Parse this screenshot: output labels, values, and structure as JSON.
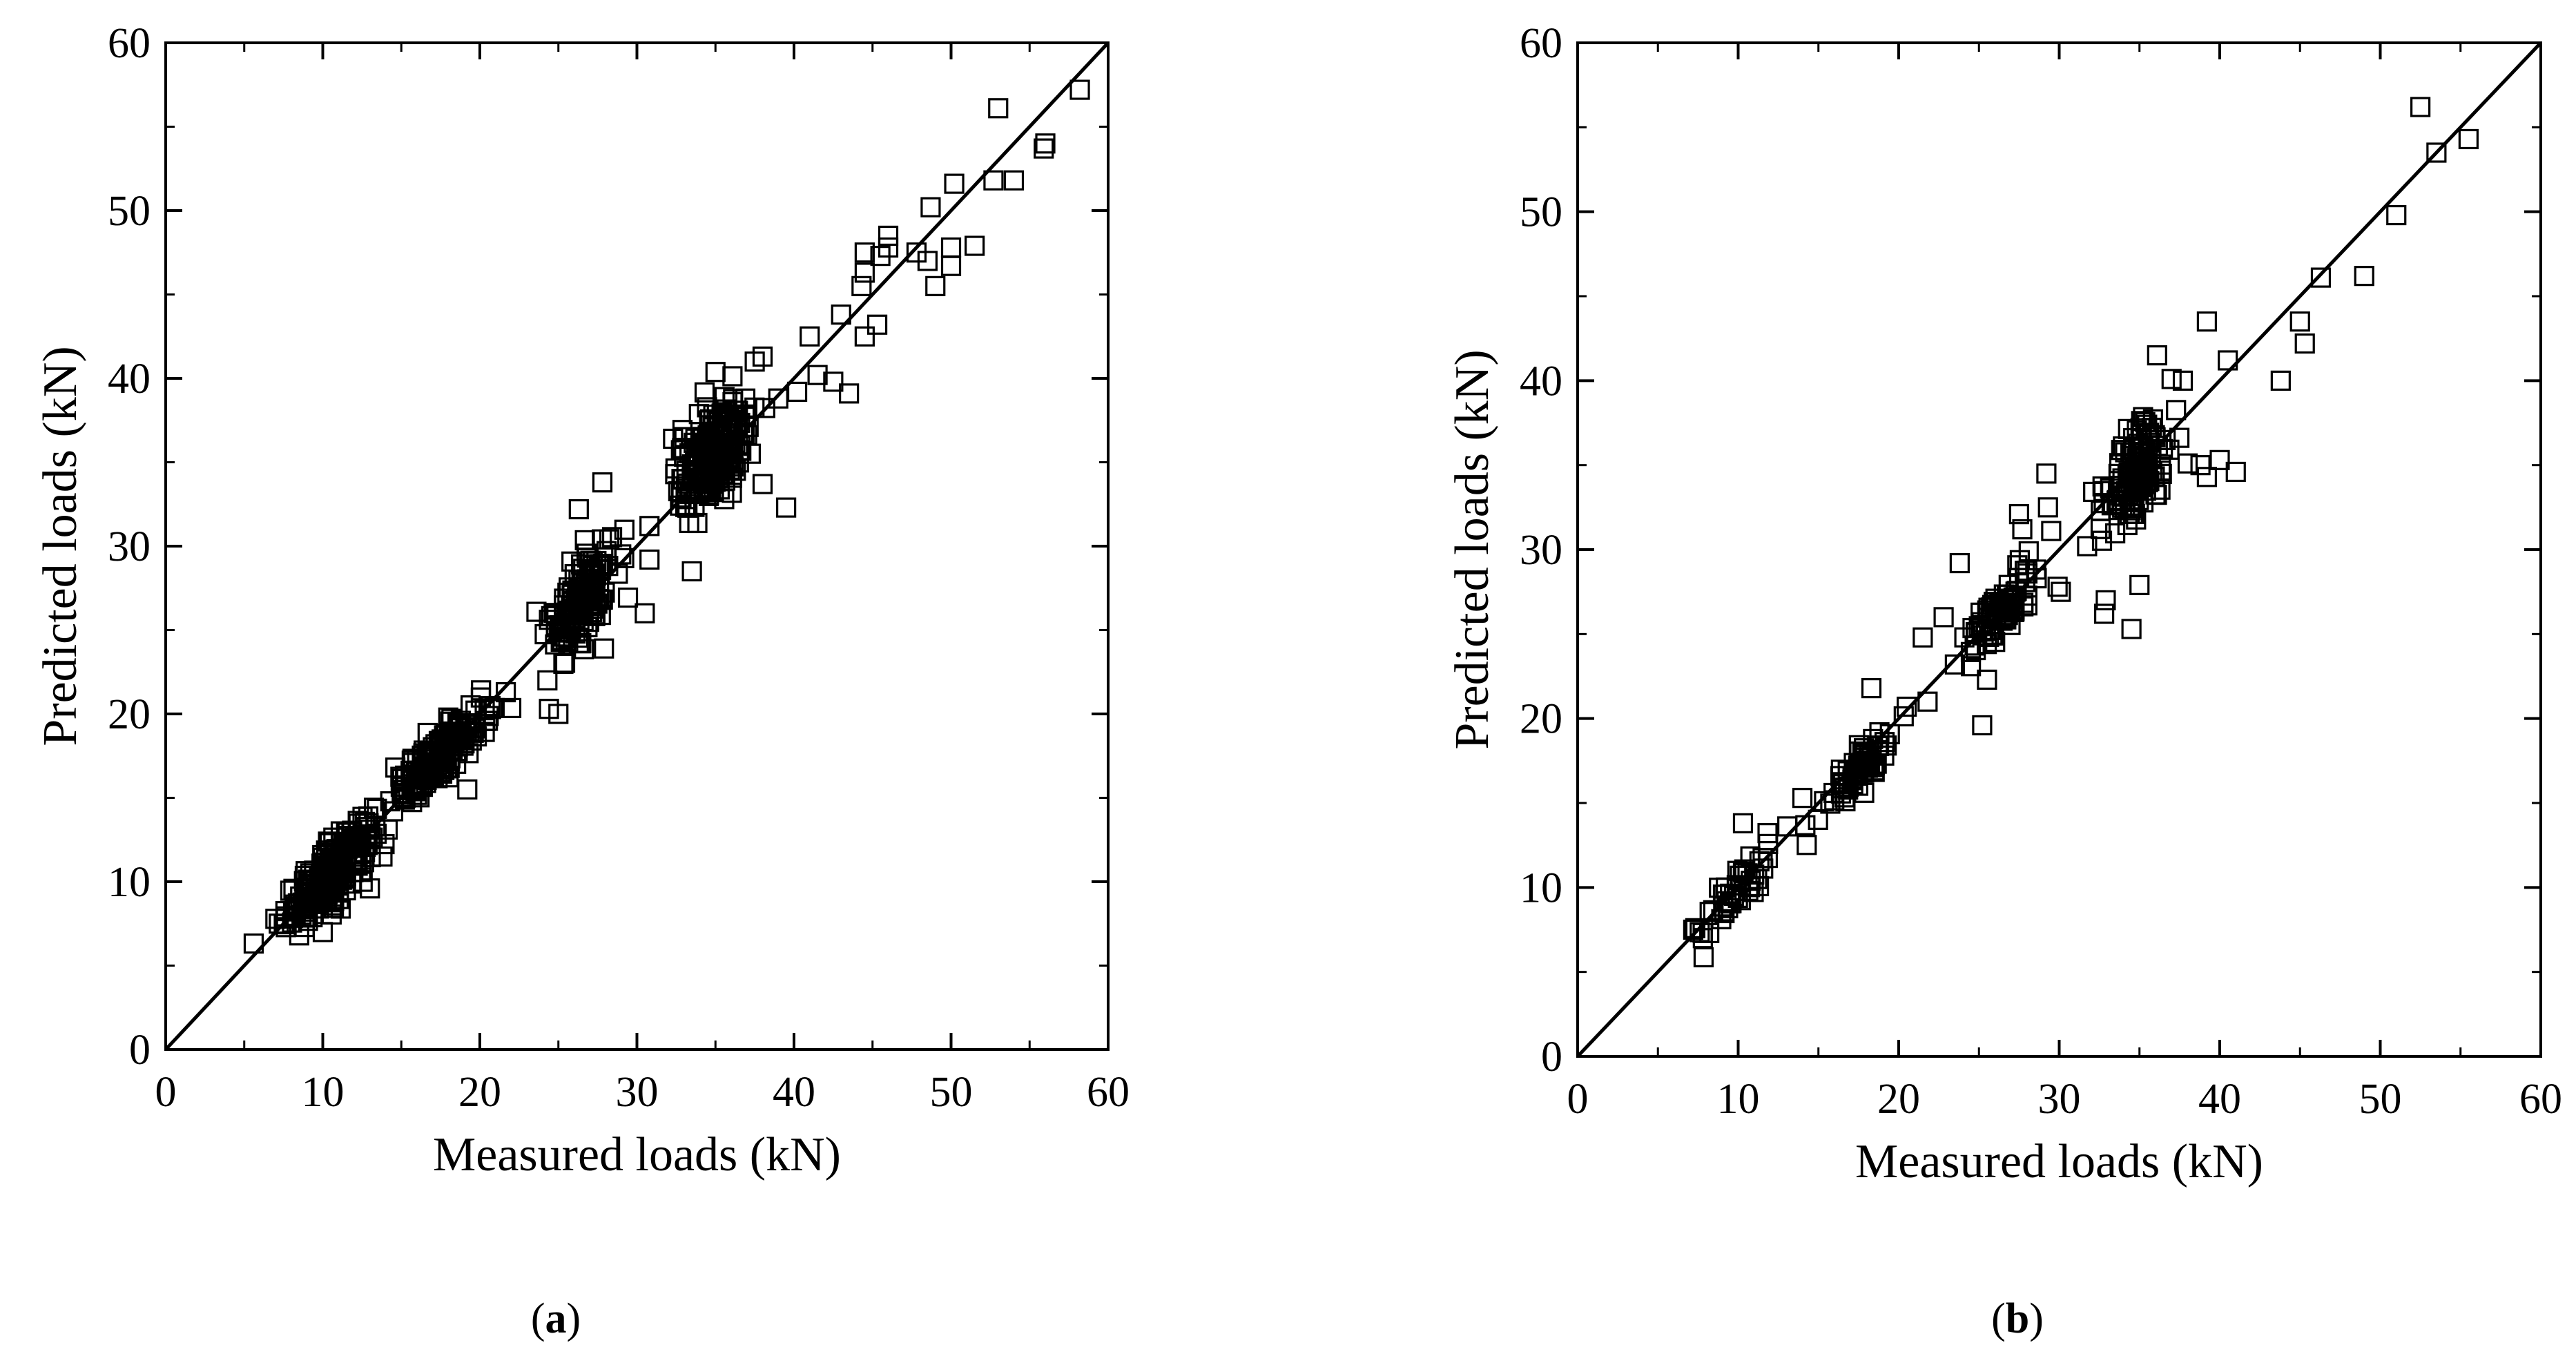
{
  "chart_data": [
    {
      "panel": "a",
      "caption_letter": "a",
      "type": "scatter",
      "xlabel": "Measured loads (kN)",
      "ylabel": "Predicted loads (kN)",
      "xlim": [
        0,
        60
      ],
      "ylim": [
        0,
        60
      ],
      "xticks": [
        0,
        10,
        20,
        30,
        40,
        50,
        60
      ],
      "yticks": [
        0,
        10,
        20,
        30,
        40,
        50,
        60
      ],
      "reference_line": {
        "from": [
          0,
          0
        ],
        "to": [
          60,
          60
        ]
      },
      "marker": "open-square",
      "grid": false,
      "clusters": [
        {
          "cx": 10.5,
          "cy": 10.5,
          "sx": 1.4,
          "sy": 1.6,
          "n": 240
        },
        {
          "cx": 17.5,
          "cy": 17.5,
          "sx": 1.5,
          "sy": 1.3,
          "n": 180
        },
        {
          "cx": 26.5,
          "cy": 27.0,
          "sx": 1.0,
          "sy": 2.4,
          "n": 150
        },
        {
          "cx": 35.0,
          "cy": 35.5,
          "sx": 1.2,
          "sy": 2.8,
          "n": 200
        }
      ],
      "values": [
        [
          7.2,
          7.5
        ],
        [
          8.5,
          6.8
        ],
        [
          10.0,
          7.0
        ],
        [
          13.0,
          9.6
        ],
        [
          13.8,
          11.5
        ],
        [
          19.2,
          15.5
        ],
        [
          24.4,
          20.3
        ],
        [
          25.0,
          20.0
        ],
        [
          24.3,
          22.0
        ],
        [
          27.9,
          23.9
        ],
        [
          27.8,
          33.8
        ],
        [
          26.3,
          32.2
        ],
        [
          30.5,
          26.0
        ],
        [
          30.8,
          29.2
        ],
        [
          30.8,
          31.2
        ],
        [
          32.3,
          36.4
        ],
        [
          32.8,
          33.2
        ],
        [
          33.5,
          28.5
        ],
        [
          37.5,
          41.0
        ],
        [
          38.0,
          41.3
        ],
        [
          38.0,
          33.7
        ],
        [
          39.5,
          32.3
        ],
        [
          39.0,
          38.8
        ],
        [
          40.2,
          39.2
        ],
        [
          41.0,
          42.5
        ],
        [
          41.5,
          40.2
        ],
        [
          42.5,
          39.8
        ],
        [
          43.0,
          43.8
        ],
        [
          43.5,
          39.1
        ],
        [
          44.3,
          45.5
        ],
        [
          44.5,
          46.3
        ],
        [
          44.5,
          47.5
        ],
        [
          44.5,
          42.5
        ],
        [
          45.3,
          43.2
        ],
        [
          45.5,
          47.3
        ],
        [
          46.0,
          47.8
        ],
        [
          46.0,
          48.5
        ],
        [
          47.8,
          47.5
        ],
        [
          48.5,
          47.0
        ],
        [
          48.7,
          50.2
        ],
        [
          49.0,
          45.5
        ],
        [
          50.0,
          46.7
        ],
        [
          50.0,
          47.8
        ],
        [
          50.2,
          51.6
        ],
        [
          51.5,
          47.9
        ],
        [
          52.7,
          51.8
        ],
        [
          53.0,
          56.1
        ],
        [
          54.0,
          51.8
        ],
        [
          55.9,
          53.7
        ],
        [
          56.0,
          54.0
        ],
        [
          58.2,
          57.2
        ]
      ]
    },
    {
      "panel": "b",
      "caption_letter": "b",
      "type": "scatter",
      "xlabel": "Measured loads (kN)",
      "ylabel": "Predicted loads (kN)",
      "xlim": [
        0,
        60
      ],
      "ylim": [
        0,
        60
      ],
      "xticks": [
        0,
        10,
        20,
        30,
        40,
        50,
        60
      ],
      "yticks": [
        0,
        10,
        20,
        30,
        40,
        50,
        60
      ],
      "reference_line": {
        "from": [
          0,
          0
        ],
        "to": [
          60,
          60
        ]
      },
      "marker": "open-square",
      "grid": false,
      "clusters": [
        {
          "cx": 10.0,
          "cy": 10.0,
          "sx": 1.2,
          "sy": 1.3,
          "n": 45
        },
        {
          "cx": 17.5,
          "cy": 17.0,
          "sx": 1.0,
          "sy": 1.2,
          "n": 70
        },
        {
          "cx": 26.3,
          "cy": 26.3,
          "sx": 1.0,
          "sy": 1.3,
          "n": 80
        },
        {
          "cx": 34.8,
          "cy": 34.5,
          "sx": 1.0,
          "sy": 2.7,
          "n": 130
        }
      ],
      "values": [
        [
          7.2,
          7.5
        ],
        [
          7.8,
          7.0
        ],
        [
          8.2,
          7.3
        ],
        [
          10.3,
          13.8
        ],
        [
          14.0,
          15.3
        ],
        [
          18.3,
          21.8
        ],
        [
          20.5,
          20.7
        ],
        [
          21.8,
          21.0
        ],
        [
          21.5,
          24.8
        ],
        [
          22.8,
          26.0
        ],
        [
          23.5,
          23.2
        ],
        [
          23.8,
          29.2
        ],
        [
          24.5,
          23.1
        ],
        [
          25.2,
          19.6
        ],
        [
          25.5,
          22.3
        ],
        [
          27.5,
          32.1
        ],
        [
          27.7,
          31.2
        ],
        [
          28.1,
          29.9
        ],
        [
          28.6,
          28.3
        ],
        [
          29.2,
          34.5
        ],
        [
          29.3,
          32.5
        ],
        [
          29.5,
          31.1
        ],
        [
          29.9,
          27.8
        ],
        [
          30.1,
          27.5
        ],
        [
          32.8,
          26.2
        ],
        [
          32.9,
          27.0
        ],
        [
          34.5,
          25.3
        ],
        [
          35.0,
          27.9
        ],
        [
          36.1,
          41.5
        ],
        [
          37.0,
          40.1
        ],
        [
          37.7,
          40.0
        ],
        [
          38.0,
          35.1
        ],
        [
          38.8,
          35.0
        ],
        [
          39.2,
          43.5
        ],
        [
          39.2,
          34.3
        ],
        [
          40.0,
          35.3
        ],
        [
          40.5,
          41.2
        ],
        [
          41.0,
          34.6
        ],
        [
          43.8,
          40.0
        ],
        [
          45.0,
          43.5
        ],
        [
          45.3,
          42.2
        ],
        [
          46.3,
          46.1
        ],
        [
          49.0,
          46.2
        ],
        [
          51.0,
          49.8
        ],
        [
          52.5,
          56.2
        ],
        [
          53.5,
          53.5
        ],
        [
          55.5,
          54.3
        ]
      ]
    }
  ]
}
